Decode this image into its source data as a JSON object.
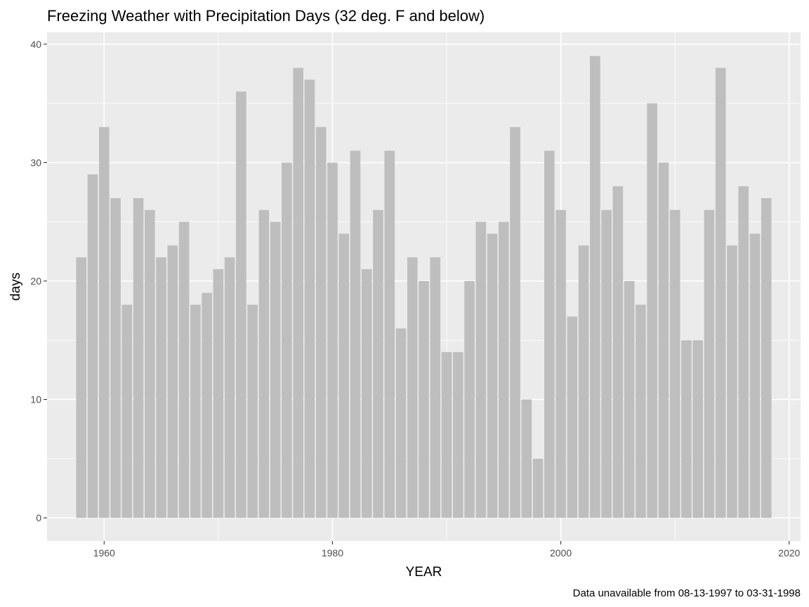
{
  "chart_data": {
    "type": "bar",
    "title": "Freezing Weather with Precipitation Days (32 deg. F and below)",
    "xlabel": "YEAR",
    "ylabel": "days",
    "caption": "Data unavailable from 08-13-1997 to 03-31-1998",
    "xlim": [
      1955,
      2021
    ],
    "ylim": [
      -1.95,
      41
    ],
    "xticks": [
      1960,
      1980,
      2000,
      2020
    ],
    "yticks": [
      0,
      10,
      20,
      30,
      40
    ],
    "grid": true,
    "legend": "none",
    "bar_color": "#bebebe",
    "panel_color": "#ebebeb",
    "x": [
      1958,
      1959,
      1960,
      1961,
      1962,
      1963,
      1964,
      1965,
      1966,
      1967,
      1968,
      1969,
      1970,
      1971,
      1972,
      1973,
      1974,
      1975,
      1976,
      1977,
      1978,
      1979,
      1980,
      1981,
      1982,
      1983,
      1984,
      1985,
      1986,
      1987,
      1988,
      1989,
      1990,
      1991,
      1992,
      1993,
      1994,
      1995,
      1996,
      1997,
      1998,
      1999,
      2000,
      2001,
      2002,
      2003,
      2004,
      2005,
      2006,
      2007,
      2008,
      2009,
      2010,
      2011,
      2012,
      2013,
      2014,
      2015,
      2016,
      2017,
      2018
    ],
    "values": [
      22,
      29,
      33,
      27,
      18,
      27,
      26,
      22,
      23,
      25,
      18,
      19,
      21,
      22,
      36,
      18,
      26,
      25,
      30,
      38,
      37,
      33,
      30,
      24,
      31,
      21,
      26,
      31,
      16,
      22,
      20,
      22,
      14,
      14,
      20,
      25,
      24,
      25,
      33,
      10,
      5,
      31,
      26,
      17,
      23,
      39,
      26,
      28,
      20,
      18,
      35,
      30,
      26,
      15,
      15,
      26,
      38,
      23,
      28,
      24,
      27
    ]
  }
}
